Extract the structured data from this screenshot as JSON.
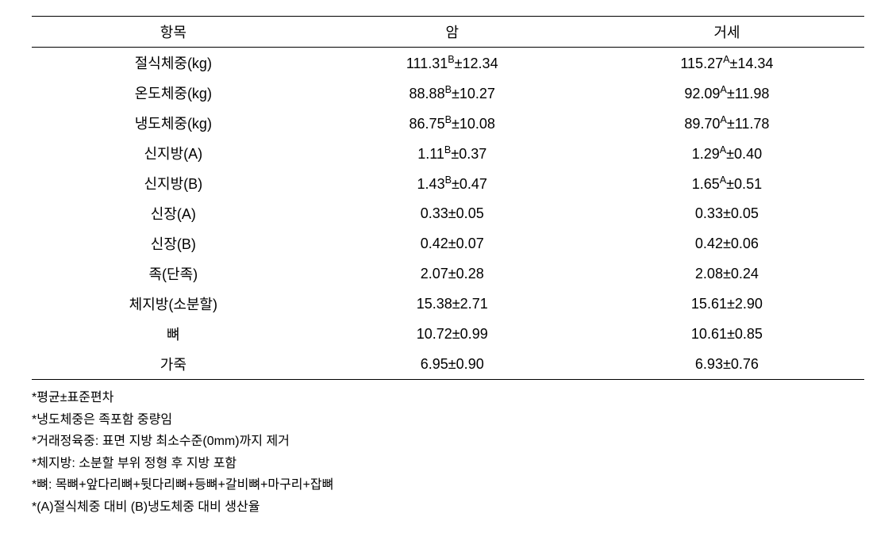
{
  "table": {
    "headers": [
      "항목",
      "암",
      "거세"
    ],
    "rows": [
      {
        "label": "절식체중(kg)",
        "col1": {
          "mean": "111.31",
          "sup": "B",
          "pm": "±12.34"
        },
        "col2": {
          "mean": "115.27",
          "sup": "A",
          "pm": "±14.34"
        }
      },
      {
        "label": "온도체중(kg)",
        "col1": {
          "mean": "88.88",
          "sup": "B",
          "pm": "±10.27"
        },
        "col2": {
          "mean": "92.09",
          "sup": "A",
          "pm": "±11.98"
        }
      },
      {
        "label": "냉도체중(kg)",
        "col1": {
          "mean": "86.75",
          "sup": "B",
          "pm": "±10.08"
        },
        "col2": {
          "mean": "89.70",
          "sup": "A",
          "pm": "±11.78"
        }
      },
      {
        "label": "신지방(A)",
        "col1": {
          "mean": "1.11",
          "sup": "B",
          "pm": "±0.37"
        },
        "col2": {
          "mean": "1.29",
          "sup": "A",
          "pm": "±0.40"
        }
      },
      {
        "label": "신지방(B)",
        "col1": {
          "mean": "1.43",
          "sup": "B",
          "pm": "±0.47"
        },
        "col2": {
          "mean": "1.65",
          "sup": "A",
          "pm": "±0.51"
        }
      },
      {
        "label": "신장(A)",
        "col1": {
          "mean": "0.33",
          "sup": "",
          "pm": "±0.05"
        },
        "col2": {
          "mean": "0.33",
          "sup": "",
          "pm": "±0.05"
        }
      },
      {
        "label": "신장(B)",
        "col1": {
          "mean": "0.42",
          "sup": "",
          "pm": "±0.07"
        },
        "col2": {
          "mean": "0.42",
          "sup": "",
          "pm": "±0.06"
        }
      },
      {
        "label": "족(단족)",
        "col1": {
          "mean": "2.07",
          "sup": "",
          "pm": "±0.28"
        },
        "col2": {
          "mean": "2.08",
          "sup": "",
          "pm": "±0.24"
        }
      },
      {
        "label": "체지방(소분할)",
        "col1": {
          "mean": "15.38",
          "sup": "",
          "pm": "±2.71"
        },
        "col2": {
          "mean": "15.61",
          "sup": "",
          "pm": "±2.90"
        }
      },
      {
        "label": "뼈",
        "col1": {
          "mean": "10.72",
          "sup": "",
          "pm": "±0.99"
        },
        "col2": {
          "mean": "10.61",
          "sup": "",
          "pm": "±0.85"
        }
      },
      {
        "label": "가죽",
        "col1": {
          "mean": "6.95",
          "sup": "",
          "pm": "±0.90"
        },
        "col2": {
          "mean": "6.93",
          "sup": "",
          "pm": "±0.76"
        }
      }
    ]
  },
  "footnotes": [
    "*평균±표준편차",
    "*냉도체중은 족포함 중량임",
    "*거래정육중: 표면 지방 최소수준(0mm)까지 제거",
    "*체지방: 소분할 부위 정형 후 지방 포함",
    "*뼈: 목뼈+앞다리뼈+뒷다리뼈+등뼈+갈비뼈+마구리+잡뼈",
    "*(A)절식체중 대비 (B)냉도체중 대비 생산율"
  ]
}
